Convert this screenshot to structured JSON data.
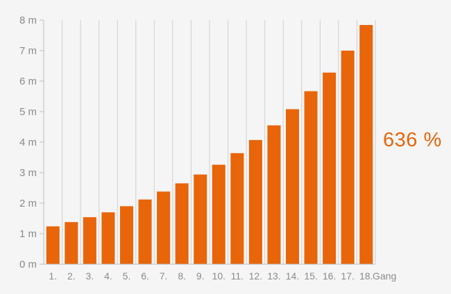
{
  "chart_data": {
    "type": "bar",
    "categories": [
      "1.",
      "2.",
      "3.",
      "4.",
      "5.",
      "6.",
      "7.",
      "8.",
      "9.",
      "10.",
      "11.",
      "12.",
      "13.",
      "14.",
      "15.",
      "16.",
      "17.",
      "18."
    ],
    "values": [
      1.24,
      1.38,
      1.54,
      1.7,
      1.9,
      2.12,
      2.38,
      2.65,
      2.94,
      3.26,
      3.64,
      4.07,
      4.55,
      5.08,
      5.67,
      6.28,
      7.0,
      7.84
    ],
    "y_ticks": [
      "0 m",
      "1 m",
      "2 m",
      "3 m",
      "4 m",
      "5 m",
      "6 m",
      "7 m",
      "8 m"
    ],
    "ylim": [
      0,
      8
    ],
    "x_unit": "Gang",
    "annotation": "636 %",
    "bar_color": "#e8650a",
    "grid": true
  }
}
